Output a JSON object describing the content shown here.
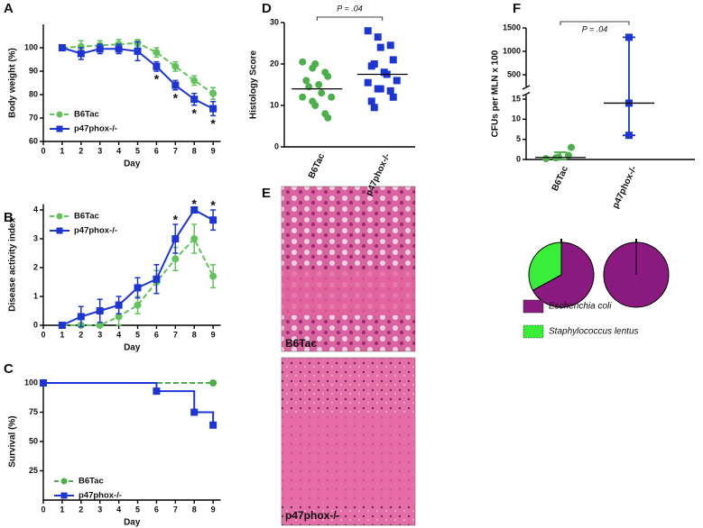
{
  "chart_data": [
    {
      "type": "line",
      "label": "A",
      "ylabel": "Body weight (%)",
      "xlabel": "Day",
      "x": [
        1,
        2,
        3,
        4,
        5,
        6,
        7,
        8,
        9
      ],
      "xlim": [
        0,
        9.4
      ],
      "xticks": [
        0,
        1,
        2,
        3,
        4,
        5,
        6,
        7,
        8,
        9
      ],
      "ylim": [
        60,
        110
      ],
      "yticks": [
        60,
        70,
        80,
        90,
        100
      ],
      "series": [
        {
          "name": "B6Tac",
          "color": "#62c25c",
          "marker": "circle",
          "dash": true,
          "values": [
            100,
            100.5,
            101,
            101.5,
            102,
            98,
            92,
            86,
            80.5
          ],
          "errors": [
            1,
            2.5,
            2,
            2,
            1.5,
            2,
            2,
            2,
            2.5
          ]
        },
        {
          "name": "p47phox-/-",
          "color": "#1c35d4",
          "marker": "square",
          "dash": false,
          "values": [
            100,
            97.5,
            99.5,
            99.5,
            98.5,
            92,
            84,
            78,
            74
          ],
          "errors": [
            1,
            2.5,
            2,
            2,
            4,
            2,
            2,
            2.5,
            3
          ]
        }
      ],
      "annotations": [
        {
          "x": 6,
          "text": "*",
          "side": "below"
        },
        {
          "x": 7,
          "text": "*",
          "side": "below"
        },
        {
          "x": 8,
          "text": "*",
          "side": "below"
        },
        {
          "x": 9,
          "text": "*",
          "side": "below"
        }
      ]
    },
    {
      "type": "line",
      "label": "B",
      "ylabel": "Disease activity index",
      "xlabel": "Day",
      "x": [
        1,
        2,
        3,
        4,
        5,
        6,
        7,
        8,
        9
      ],
      "xlim": [
        0,
        9.4
      ],
      "xticks": [
        0,
        1,
        2,
        3,
        4,
        5,
        6,
        7,
        8,
        9
      ],
      "ylim": [
        0,
        4.2
      ],
      "yticks": [
        0,
        1,
        2,
        3,
        4
      ],
      "series": [
        {
          "name": "B6Tac",
          "color": "#62c25c",
          "marker": "circle",
          "dash": true,
          "values": [
            0,
            0,
            0,
            0.3,
            0.7,
            1.5,
            2.3,
            3.0,
            1.7
          ],
          "errors": [
            0,
            0,
            0,
            0.3,
            0.3,
            0.4,
            0.4,
            0.5,
            0.4
          ]
        },
        {
          "name": "p47phox-/-",
          "color": "#1c35d4",
          "marker": "square",
          "dash": false,
          "values": [
            0,
            0.3,
            0.5,
            0.7,
            1.3,
            1.6,
            3.0,
            4.0,
            3.65
          ],
          "errors": [
            0,
            0.35,
            0.4,
            0.3,
            0.35,
            0.5,
            0.5,
            0.05,
            0.35
          ]
        }
      ],
      "annotations": [
        {
          "x": 7,
          "text": "*",
          "side": "above"
        },
        {
          "x": 8,
          "text": "*",
          "side": "above"
        },
        {
          "x": 9,
          "text": "*",
          "side": "above"
        }
      ]
    },
    {
      "type": "line",
      "label": "C",
      "ylabel": "Survival (%)",
      "xlabel": "Day",
      "step": true,
      "xlim": [
        0,
        9.4
      ],
      "xticks": [
        0,
        1,
        2,
        3,
        4,
        5,
        6,
        7,
        8,
        9
      ],
      "ylim": [
        0,
        100
      ],
      "yticks": [
        25,
        50,
        75,
        100
      ],
      "series": [
        {
          "name": "B6Tac",
          "color": "#4caf4a",
          "marker": "circle",
          "dash": true,
          "x": [
            0,
            9
          ],
          "values": [
            100,
            100
          ]
        },
        {
          "name": "p47phox-/-",
          "color": "#1c35d4",
          "marker": "square",
          "dash": false,
          "x": [
            0,
            6,
            8,
            9
          ],
          "values": [
            100,
            93,
            75,
            64
          ]
        }
      ]
    },
    {
      "type": "dot",
      "label": "D",
      "ylabel": "Histology Score",
      "ylim": [
        0,
        30
      ],
      "yticks": [
        0,
        10,
        20,
        30
      ],
      "comparison": "P = .04",
      "groups": [
        {
          "name": "B6Tac",
          "color": "#4caf4a",
          "marker": "circle",
          "mean": 14,
          "values": [
            20.5,
            19,
            20,
            18,
            17,
            16,
            14.5,
            15,
            13,
            12,
            12,
            11,
            10,
            8,
            7
          ]
        },
        {
          "name": "p47phox-/-",
          "color": "#1c35d4",
          "marker": "square",
          "mean": 17.5,
          "values": [
            28,
            26.5,
            24,
            24.5,
            21,
            19.5,
            20,
            18,
            17.5,
            16,
            15.5,
            14,
            14,
            13.5,
            12,
            11,
            9.5
          ]
        }
      ]
    },
    {
      "type": "dot",
      "label": "F",
      "ylabel": "CFUs per MLN x 100",
      "ylim": [
        0,
        1500
      ],
      "ybreak": [
        16,
        250
      ],
      "yticks": [
        0,
        5,
        10,
        15,
        500,
        1000,
        1500
      ],
      "comparison": "P = .04",
      "groups": [
        {
          "name": "B6Tac",
          "color": "#4caf4a",
          "marker": "circle",
          "mean": 0.5,
          "error_range": [
            0,
            1.8
          ],
          "values": [
            0.2,
            0.4,
            0.6,
            1,
            3
          ]
        },
        {
          "name": "p47phox-/-",
          "color": "#1c35d4",
          "marker": "square",
          "mean": 14,
          "error_range": [
            6,
            1300
          ],
          "values": [
            1300,
            14,
            6
          ]
        }
      ]
    },
    {
      "type": "pie",
      "series": [
        {
          "name": "Escherichia coli",
          "color": "#8a1a80",
          "values": [
            67,
            100
          ]
        },
        {
          "name": "Staphylococcus lentus",
          "color": "#39ee39",
          "values": [
            33,
            0
          ]
        }
      ]
    }
  ],
  "image_panel": {
    "label": "E",
    "captions": [
      "B6Tac",
      "p47phox-/-"
    ]
  }
}
